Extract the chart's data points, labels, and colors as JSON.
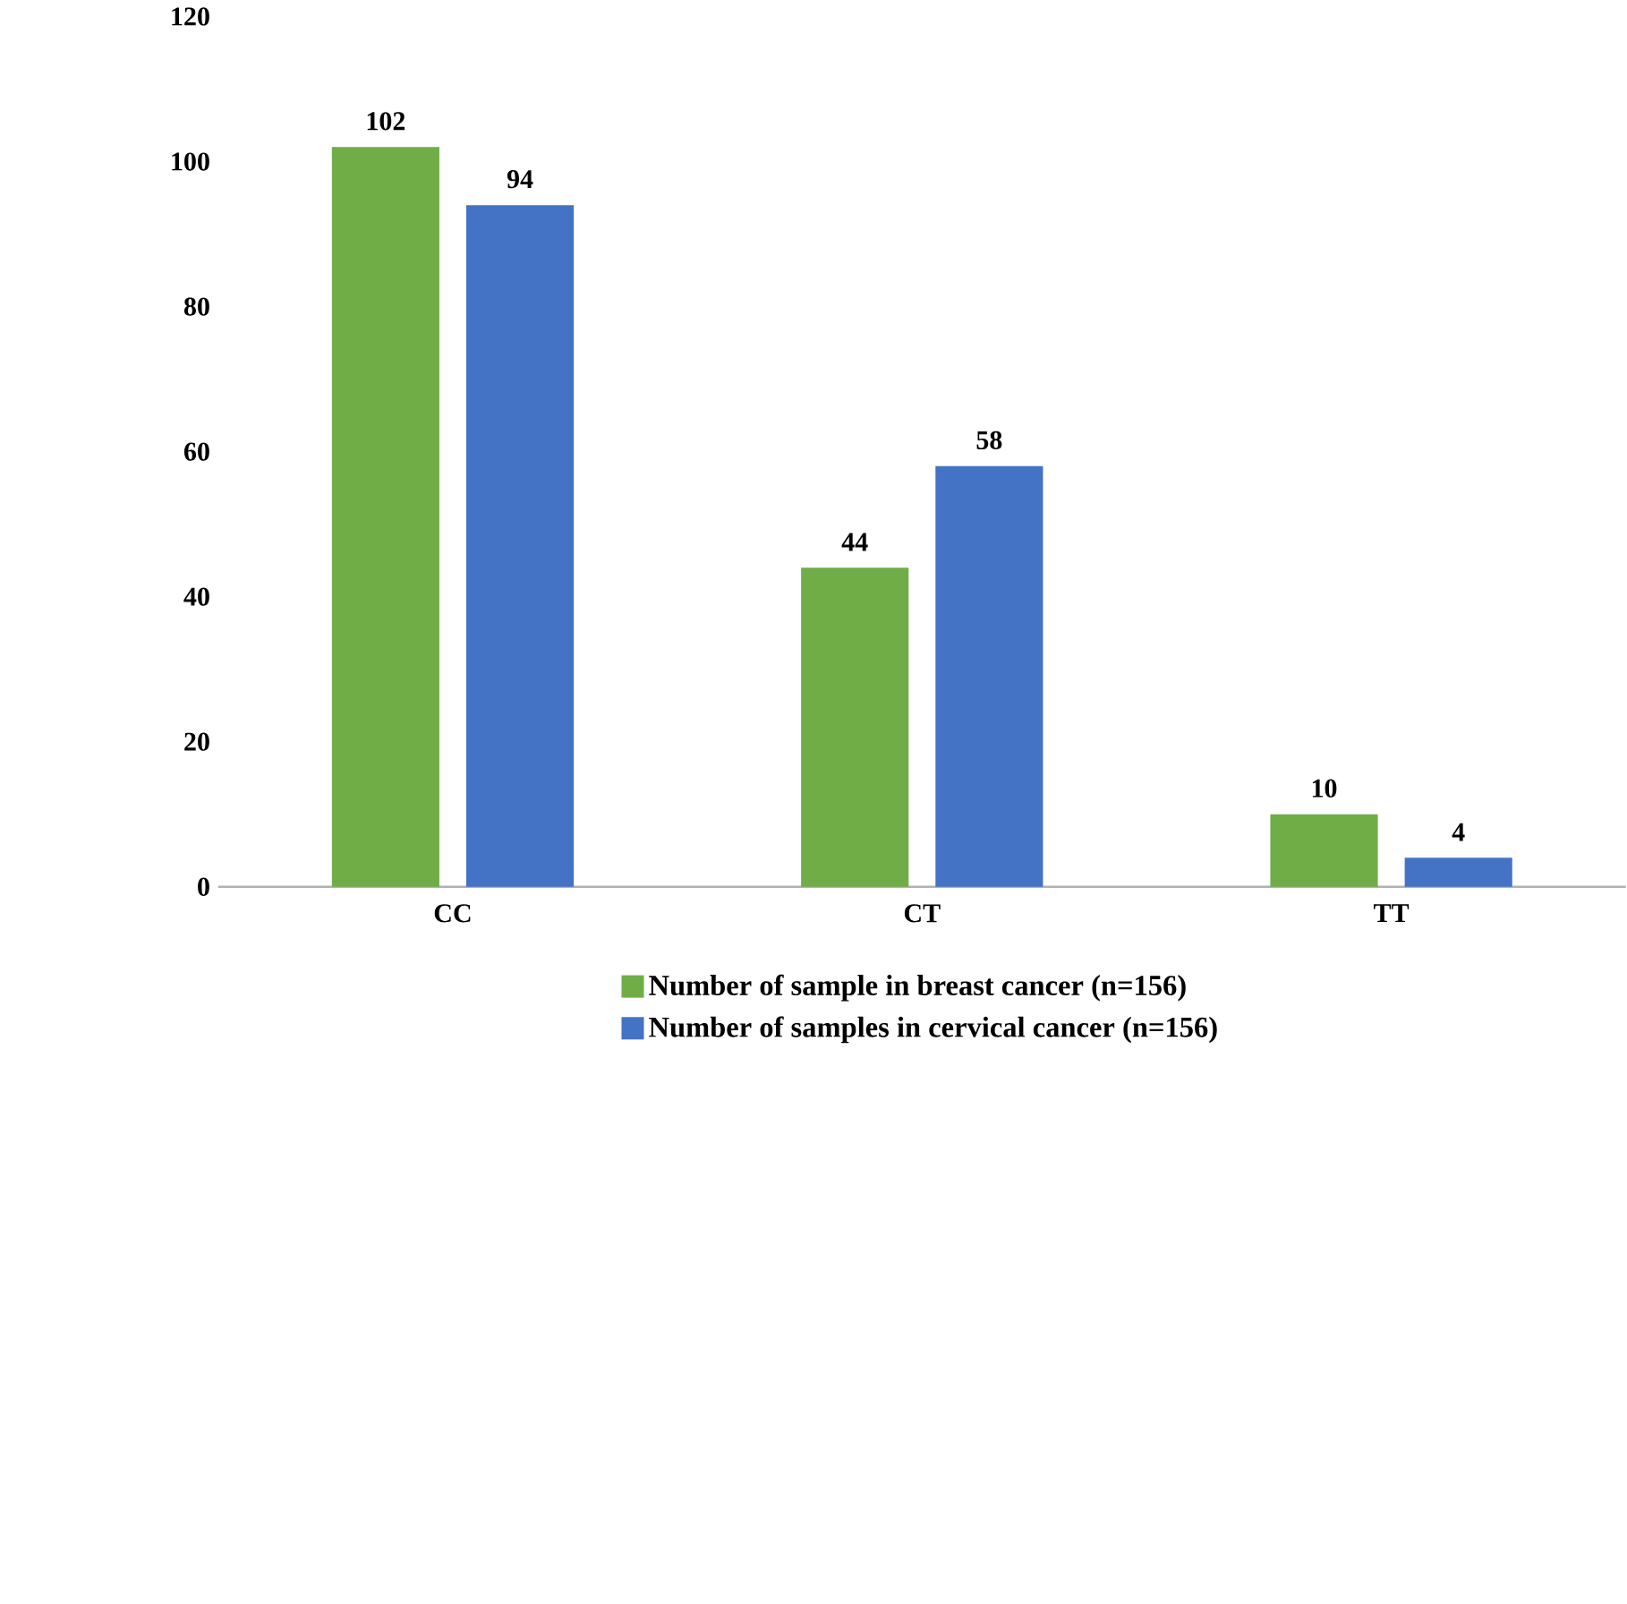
{
  "chart_data": {
    "type": "bar",
    "categories": [
      "CC",
      "CT",
      "TT"
    ],
    "series": [
      {
        "name": "Number of sample in breast cancer (n=156)",
        "color": "#70ad47",
        "values": [
          102,
          44,
          10
        ]
      },
      {
        "name": "Number of samples in cervical cancer (n=156)",
        "color": "#4472c4",
        "values": [
          94,
          58,
          4
        ]
      }
    ],
    "ylim": [
      0,
      120
    ],
    "yticks": [
      0,
      20,
      40,
      60,
      80,
      100,
      120
    ],
    "data_labels": true,
    "grid": false,
    "legend": "bottom"
  }
}
